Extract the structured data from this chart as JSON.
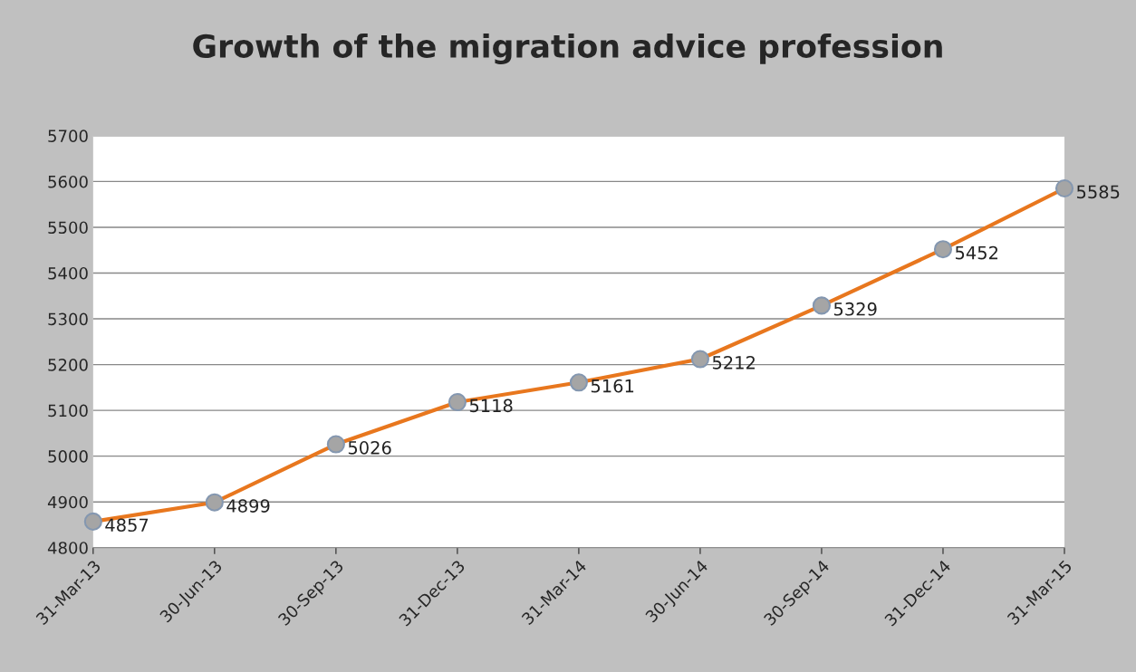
{
  "chart_data": {
    "type": "line",
    "title": "Growth of the migration advice profession",
    "categories": [
      "31-Mar-13",
      "30-Jun-13",
      "30-Sep-13",
      "31-Dec-13",
      "31-Mar-14",
      "30-Jun-14",
      "30-Sep-14",
      "31-Dec-14",
      "31-Mar-15"
    ],
    "series": [
      {
        "color": "#e8771e",
        "values": [
          4857,
          4899,
          5026,
          5118,
          5161,
          5212,
          5329,
          5452,
          5585
        ]
      }
    ],
    "ylim": [
      4800,
      5700
    ],
    "yticks": [
      4800,
      4900,
      5000,
      5100,
      5200,
      5300,
      5400,
      5500,
      5600,
      5700
    ],
    "grid": "y",
    "marker": "circle",
    "line_style": "solid",
    "data_labels": true,
    "legend": false
  }
}
